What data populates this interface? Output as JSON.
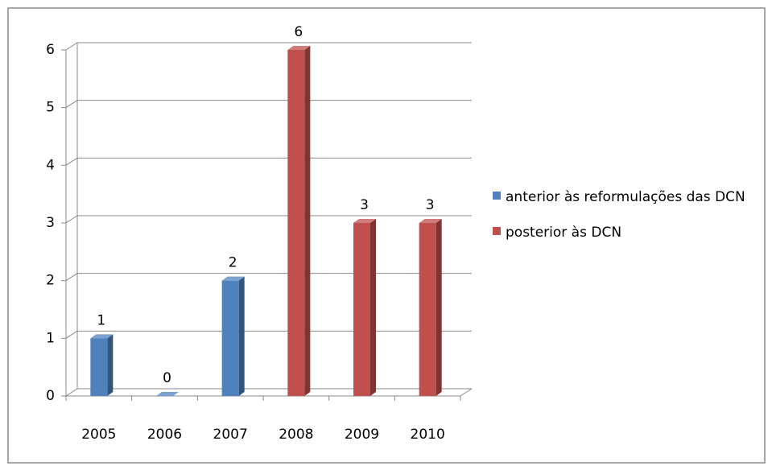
{
  "chart_data": {
    "type": "bar3d",
    "categories": [
      "2005",
      "2006",
      "2007",
      "2008",
      "2009",
      "2010"
    ],
    "series": [
      {
        "name": "anterior às reformulações das DCN",
        "color": "#4f81bd",
        "values": [
          1,
          0,
          2,
          null,
          null,
          null
        ]
      },
      {
        "name": "posterior às DCN",
        "color": "#c0504d",
        "values": [
          null,
          null,
          null,
          6,
          3,
          3
        ]
      }
    ],
    "ylim": [
      0,
      6
    ],
    "yticks": [
      0,
      1,
      2,
      3,
      4,
      5,
      6
    ],
    "grid": true,
    "legend": "right"
  }
}
